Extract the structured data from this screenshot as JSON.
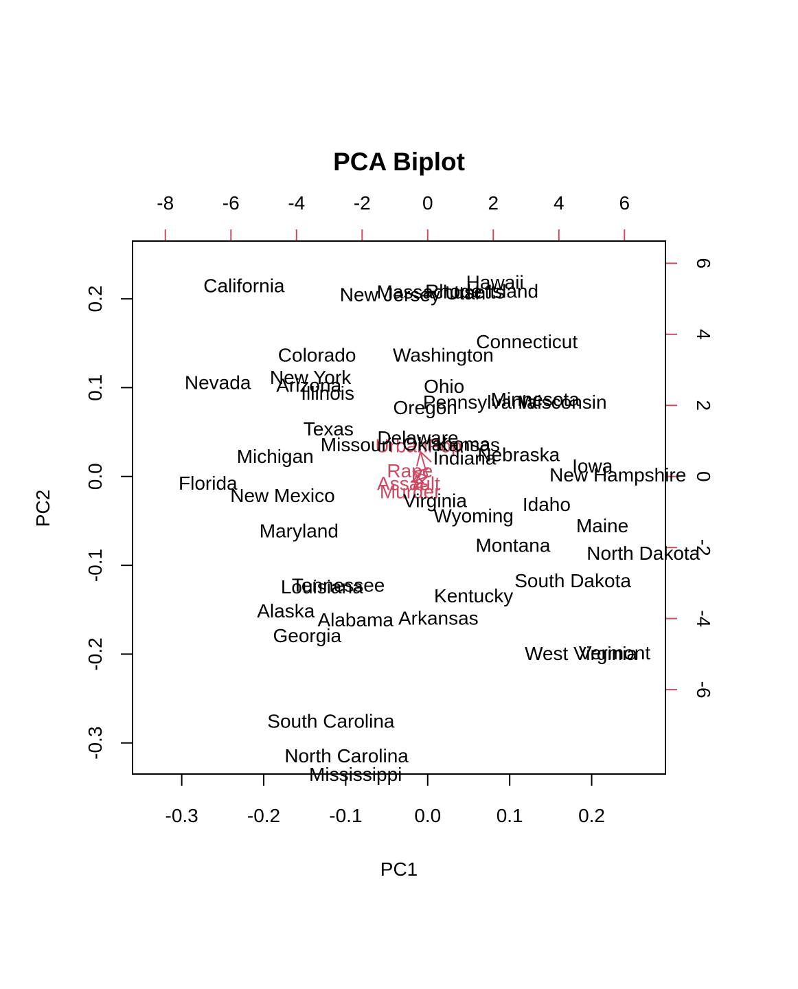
{
  "colors": {
    "text": "#000000",
    "loadings": "#cd4a63"
  },
  "chart_data": {
    "type": "scatter",
    "title": "PCA Biplot",
    "xlabel": "PC1",
    "ylabel": "PC2",
    "xlim": [
      -0.36,
      0.29
    ],
    "ylim": [
      -0.335,
      0.265
    ],
    "bottom_ticks": [
      "-0.3",
      "-0.2",
      "-0.1",
      "0.0",
      "0.1",
      "0.2"
    ],
    "left_ticks": [
      "-0.3",
      "-0.2",
      "-0.1",
      "0.0",
      "0.1",
      "0.2"
    ],
    "top_ticks": [
      "-8",
      "-6",
      "-4",
      "-2",
      "0",
      "2",
      "4",
      "6"
    ],
    "right_ticks": [
      "-6",
      "-4",
      "-2",
      "0",
      "2",
      "4",
      "6"
    ],
    "loading_scale": 0.04,
    "observations": [
      {
        "label": "Alabama",
        "x": -0.088,
        "y": -0.161
      },
      {
        "label": "Alaska",
        "x": -0.173,
        "y": -0.151
      },
      {
        "label": "Arizona",
        "x": -0.145,
        "y": 0.103
      },
      {
        "label": "Arkansas",
        "x": 0.013,
        "y": -0.159
      },
      {
        "label": "California",
        "x": -0.224,
        "y": 0.215
      },
      {
        "label": "Colorado",
        "x": -0.135,
        "y": 0.137
      },
      {
        "label": "Connecticut",
        "x": 0.121,
        "y": 0.152
      },
      {
        "label": "Delaware",
        "x": -0.012,
        "y": 0.044
      },
      {
        "label": "Florida",
        "x": -0.268,
        "y": -0.007
      },
      {
        "label": "Georgia",
        "x": -0.147,
        "y": -0.179
      },
      {
        "label": "Hawaii",
        "x": 0.082,
        "y": 0.219
      },
      {
        "label": "Idaho",
        "x": 0.145,
        "y": -0.031
      },
      {
        "label": "Illinois",
        "x": -0.122,
        "y": 0.094
      },
      {
        "label": "Indiana",
        "x": 0.045,
        "y": 0.021
      },
      {
        "label": "Iowa",
        "x": 0.201,
        "y": 0.012
      },
      {
        "label": "Kansas",
        "x": 0.049,
        "y": 0.036
      },
      {
        "label": "Kentucky",
        "x": 0.056,
        "y": -0.134
      },
      {
        "label": "Louisiana",
        "x": -0.129,
        "y": -0.124
      },
      {
        "label": "Maine",
        "x": 0.213,
        "y": -0.055
      },
      {
        "label": "Maryland",
        "x": -0.157,
        "y": -0.061
      },
      {
        "label": "Massachusetts",
        "x": 0.016,
        "y": 0.208
      },
      {
        "label": "Michigan",
        "x": -0.186,
        "y": 0.023
      },
      {
        "label": "Minnesota",
        "x": 0.131,
        "y": 0.087
      },
      {
        "label": "Mississippi",
        "x": -0.088,
        "y": -0.335
      },
      {
        "label": "Missouri",
        "x": -0.087,
        "y": 0.036
      },
      {
        "label": "Montana",
        "x": 0.104,
        "y": -0.077
      },
      {
        "label": "Nebraska",
        "x": 0.111,
        "y": 0.025
      },
      {
        "label": "Nevada",
        "x": -0.256,
        "y": 0.106
      },
      {
        "label": "New Hampshire",
        "x": 0.232,
        "y": 0.002
      },
      {
        "label": "New Jersey",
        "x": -0.046,
        "y": 0.205
      },
      {
        "label": "New Mexico",
        "x": -0.177,
        "y": -0.021
      },
      {
        "label": "New York",
        "x": -0.143,
        "y": 0.112
      },
      {
        "label": "North Carolina",
        "x": -0.099,
        "y": -0.314
      },
      {
        "label": "North Dakota",
        "x": 0.263,
        "y": -0.086
      },
      {
        "label": "Ohio",
        "x": 0.02,
        "y": 0.102
      },
      {
        "label": "Oklahoma",
        "x": 0.023,
        "y": 0.037
      },
      {
        "label": "Oregon",
        "x": -0.003,
        "y": 0.078
      },
      {
        "label": "Pennsylvania",
        "x": 0.064,
        "y": 0.084
      },
      {
        "label": "Rhode Island",
        "x": 0.066,
        "y": 0.209
      },
      {
        "label": "South Carolina",
        "x": -0.118,
        "y": -0.275
      },
      {
        "label": "South Dakota",
        "x": 0.177,
        "y": -0.117
      },
      {
        "label": "Tennessee",
        "x": -0.109,
        "y": -0.122
      },
      {
        "label": "Texas",
        "x": -0.121,
        "y": 0.054
      },
      {
        "label": "Utah",
        "x": 0.046,
        "y": 0.207
      },
      {
        "label": "Vermont",
        "x": 0.228,
        "y": -0.198
      },
      {
        "label": "Virginia",
        "x": 0.009,
        "y": -0.027
      },
      {
        "label": "Washington",
        "x": 0.019,
        "y": 0.137
      },
      {
        "label": "West Virginia",
        "x": 0.187,
        "y": -0.199
      },
      {
        "label": "Wisconsin",
        "x": 0.165,
        "y": 0.084
      },
      {
        "label": "Wyoming",
        "x": 0.056,
        "y": -0.044
      }
    ],
    "loadings": [
      {
        "label": "Murder",
        "x": -0.5359,
        "y": -0.4182
      },
      {
        "label": "Assault",
        "x": -0.5832,
        "y": -0.188
      },
      {
        "label": "UrbanPop",
        "x": -0.2782,
        "y": 0.8728
      },
      {
        "label": "Rape",
        "x": -0.5434,
        "y": 0.1673
      }
    ]
  }
}
